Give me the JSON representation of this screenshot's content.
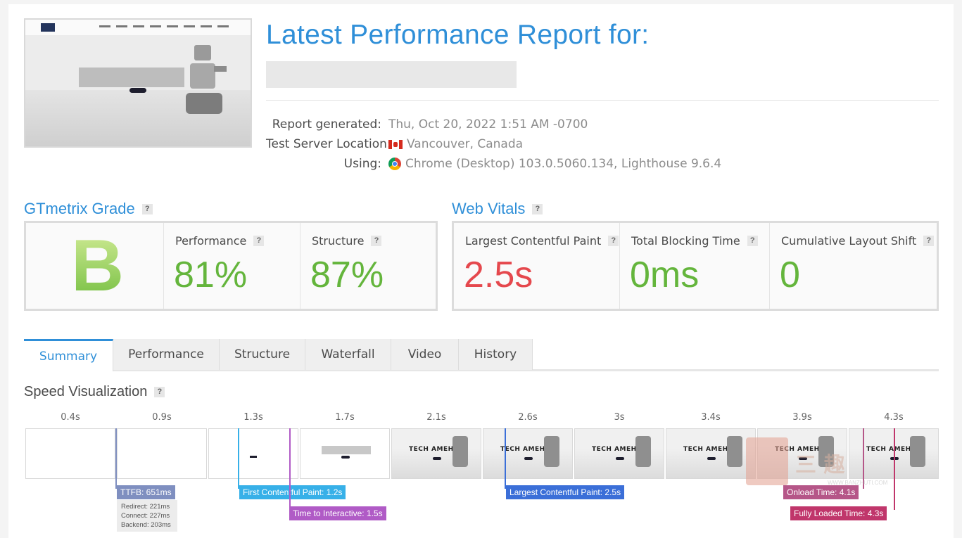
{
  "header": {
    "title": "Latest Performance Report for:",
    "meta": [
      {
        "label": "Report generated:",
        "value": "Thu, Oct 20, 2022 1:51 AM -0700",
        "icon": null
      },
      {
        "label": "Test Server Location:",
        "value": "Vancouver, Canada",
        "icon": "canada-flag-icon"
      },
      {
        "label": "Using:",
        "value": "Chrome (Desktop) 103.0.5060.134, Lighthouse 9.6.4",
        "icon": "chrome-icon"
      }
    ]
  },
  "grade": {
    "heading": "GTmetrix Grade",
    "letter": "B",
    "performance_label": "Performance",
    "performance_value": "81%",
    "structure_label": "Structure",
    "structure_value": "87%"
  },
  "vitals": {
    "heading": "Web Vitals",
    "lcp_label": "Largest Contentful Paint",
    "lcp_value": "2.5s",
    "tbt_label": "Total Blocking Time",
    "tbt_value": "0ms",
    "cls_label": "Cumulative Layout Shift",
    "cls_value": "0"
  },
  "help_symbol": "?",
  "tabs": [
    "Summary",
    "Performance",
    "Structure",
    "Waterfall",
    "Video",
    "History"
  ],
  "active_tab": "Summary",
  "speed": {
    "heading": "Speed Visualization",
    "ticks": [
      "0.4s",
      "0.9s",
      "1.3s",
      "1.7s",
      "2.1s",
      "2.6s",
      "3s",
      "3.4s",
      "3.9s",
      "4.3s"
    ],
    "frame_text": "TECH AMEHO",
    "markers": {
      "ttfb": "TTFB: 651ms",
      "fcp": "First Contentful Paint: 1.2s",
      "tti": "Time to Interactive: 1.5s",
      "lcp": "Largest Contentful Paint: 2.5s",
      "onload": "Onload Time: 4.1s",
      "fully_loaded": "Fully Loaded Time: 4.3s"
    },
    "ttfb_detail": {
      "redirect": "Redirect: 221ms",
      "connect": "Connect: 227ms",
      "backend": "Backend: 203ms"
    }
  },
  "watermark_url": "WWW.BANZHUTI.COM",
  "colors": {
    "accent": "#2f8fd8",
    "good": "#64b53c",
    "bad": "#e5484d",
    "ttfb": "#7f8fc0",
    "fcp": "#37b0e8",
    "tti": "#b05bc6",
    "lcp": "#3b6fd8",
    "onload": "#b55688",
    "fully_loaded": "#c0366b"
  }
}
